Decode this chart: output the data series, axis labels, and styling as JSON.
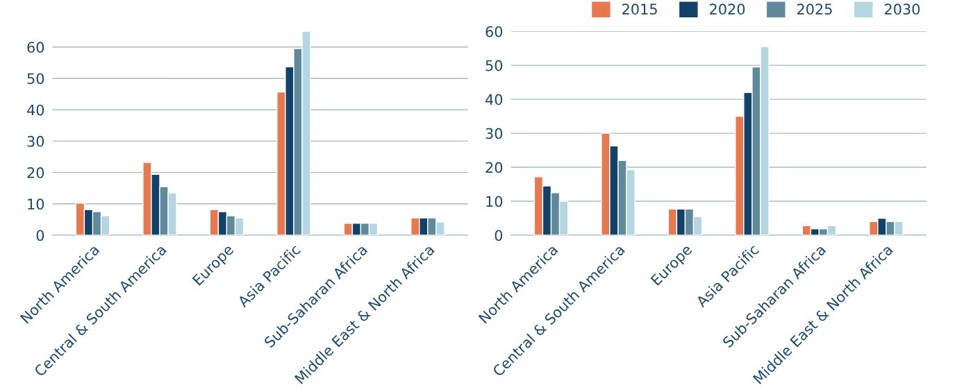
{
  "chart_data": [
    {
      "type": "bar",
      "categories": [
        "North America",
        "Central & South America",
        "Europe",
        "Asia Pacific",
        "Sub-Saharan Africa",
        "Middle East & North Africa"
      ],
      "ylim": [
        0,
        65
      ],
      "yticks": [
        0,
        10,
        20,
        30,
        40,
        50,
        60
      ],
      "grid": "y",
      "series": [
        {
          "color": "#e8794f",
          "values": [
            10.2,
            23.2,
            8.2,
            45.7,
            3.8,
            5.5
          ]
        },
        {
          "color": "#124268",
          "values": [
            8.2,
            19.4,
            7.5,
            53.7,
            3.8,
            5.5
          ]
        },
        {
          "color": "#5f8a9b",
          "values": [
            7.5,
            15.5,
            6.2,
            59.5,
            3.8,
            5.5
          ]
        },
        {
          "color": "#b4d6e2",
          "values": [
            6.2,
            13.5,
            5.5,
            65,
            3.8,
            4.2
          ]
        }
      ]
    },
    {
      "type": "bar",
      "categories": [
        "North America",
        "Central & South America",
        "Europe",
        "Asia Pacific",
        "Sub-Saharan Africa",
        "Middle East & North Africa"
      ],
      "ylim": [
        0,
        60
      ],
      "yticks": [
        0,
        10,
        20,
        30,
        40,
        50,
        60
      ],
      "grid": "y",
      "legend": "top right",
      "series": [
        {
          "name": "2015",
          "color": "#e8794f",
          "values": [
            17.2,
            30,
            7.7,
            35,
            2.8,
            4
          ]
        },
        {
          "name": "2020",
          "color": "#124268",
          "values": [
            14.5,
            26.3,
            7.7,
            42,
            1.9,
            5
          ]
        },
        {
          "name": "2025",
          "color": "#5f8a9b",
          "values": [
            12.5,
            22,
            7.7,
            49.5,
            1.9,
            4
          ]
        },
        {
          "name": "2030",
          "color": "#b4d6e2",
          "values": [
            10,
            19.3,
            5.5,
            55.5,
            2.8,
            4
          ]
        }
      ]
    }
  ]
}
